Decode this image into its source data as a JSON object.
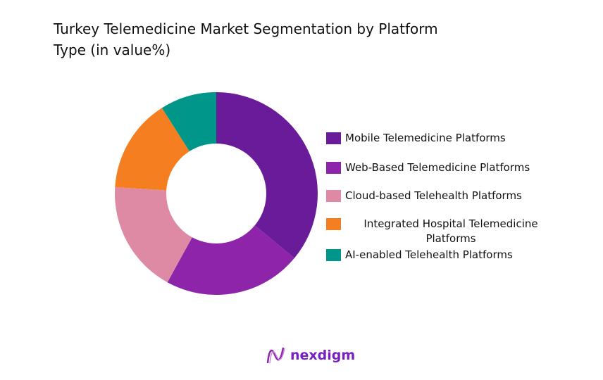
{
  "chart_data": {
    "type": "pie",
    "donut": true,
    "title": "Turkey Telemedicine Market Segmentation by Platform\n Type (in value%)",
    "categories": [
      "Mobile Telemedicine Platforms",
      "Web-Based Telemedicine Platforms",
      "Cloud-based Telehealth Platforms",
      "Integrated Hospital Telemedicine Platforms",
      "AI-enabled Telehealth Platforms"
    ],
    "values": [
      36,
      22,
      18,
      15,
      9
    ],
    "colors": [
      "#6a1b9a",
      "#8e24aa",
      "#de8aa4",
      "#f57f20",
      "#00968a"
    ],
    "legend_position": "right"
  },
  "logo": {
    "text": "nexdigm"
  }
}
